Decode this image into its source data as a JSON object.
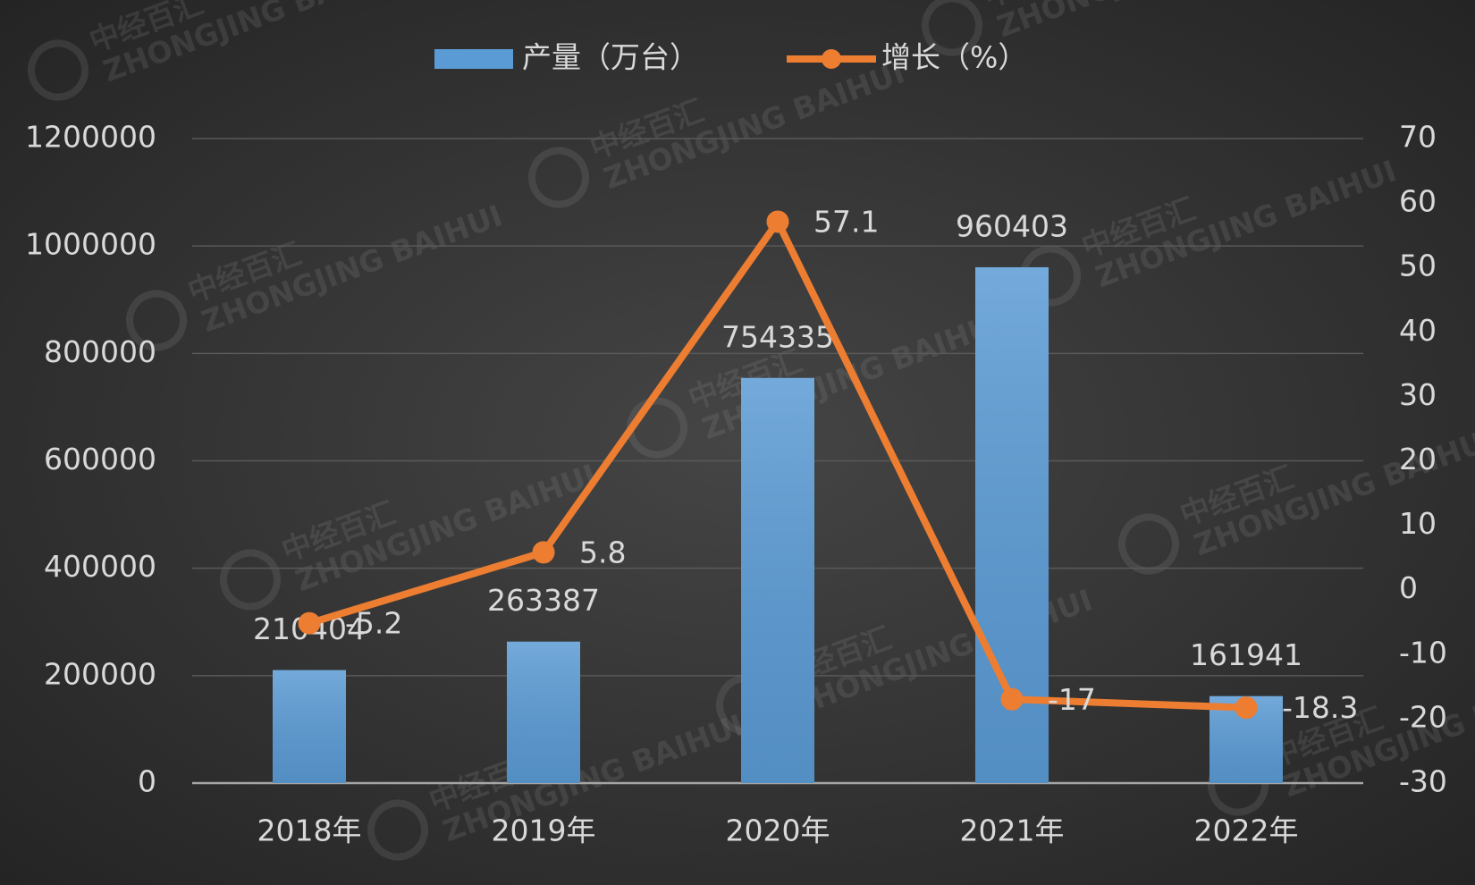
{
  "chart_data": {
    "type": "bar",
    "categories": [
      "2018年",
      "2019年",
      "2020年",
      "2021年",
      "2022年"
    ],
    "series": [
      {
        "name": "产量（万台）",
        "type": "bar",
        "color": "#5b9bd5",
        "values": [
          210404,
          263387,
          754335,
          960403,
          161941
        ]
      },
      {
        "name": "增长（%）",
        "type": "line",
        "axis": "y2",
        "color": "#ed7d31",
        "values": [
          -5.2,
          5.8,
          57.1,
          -17,
          -18.3
        ]
      }
    ],
    "ylim": [
      0,
      1200000
    ],
    "yticks": [
      0,
      200000,
      400000,
      600000,
      800000,
      1000000,
      1200000
    ],
    "y2lim": [
      -30,
      70
    ],
    "y2ticks": [
      -30,
      -20,
      -10,
      0,
      10,
      20,
      30,
      40,
      50,
      60,
      70
    ],
    "grid": true,
    "legend": "top",
    "watermark": {
      "text": "中经百汇",
      "subtext": "ZHONGJING BAIHUI"
    }
  }
}
